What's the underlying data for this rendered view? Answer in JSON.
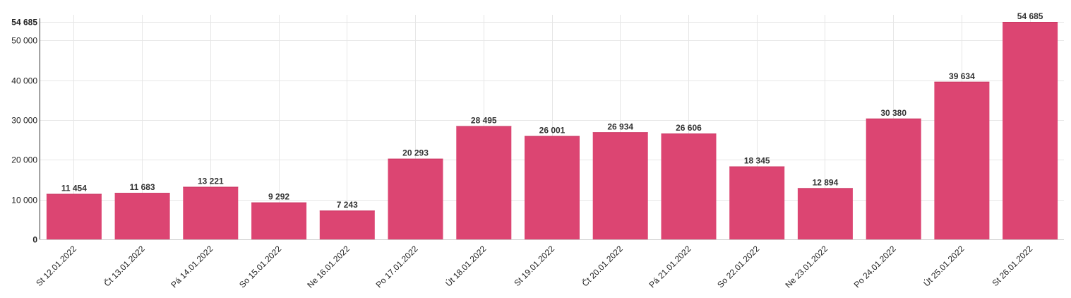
{
  "chart_data": {
    "type": "bar",
    "title": "",
    "xlabel": "",
    "ylabel": "",
    "categories": [
      "St 12.01.2022",
      "Čt 13.01.2022",
      "Pá 14.01.2022",
      "So 15.01.2022",
      "Ne 16.01.2022",
      "Po 17.01.2022",
      "Út 18.01.2022",
      "St 19.01.2022",
      "Čt 20.01.2022",
      "Pá 21.01.2022",
      "So 22.01.2022",
      "Ne 23.01.2022",
      "Po 24.01.2022",
      "Út 25.01.2022",
      "St 26.01.2022"
    ],
    "values": [
      11454,
      11683,
      13221,
      9292,
      7243,
      20293,
      28495,
      26001,
      26934,
      26606,
      18345,
      12894,
      30380,
      39634,
      54685
    ],
    "value_labels": [
      "11 454",
      "11 683",
      "13 221",
      "9 292",
      "7 243",
      "20 293",
      "28 495",
      "26 001",
      "26 934",
      "26 606",
      "18 345",
      "12 894",
      "30 380",
      "39 634",
      "54 685"
    ],
    "ylim": [
      0,
      54685
    ],
    "yticks": [
      0,
      10000,
      20000,
      30000,
      40000,
      50000,
      54685
    ],
    "ytick_labels": [
      "0",
      "10 000",
      "20 000",
      "30 000",
      "40 000",
      "50 000",
      "54 685"
    ],
    "grid": true,
    "legend": "none",
    "bar_color": "#dc4572"
  }
}
